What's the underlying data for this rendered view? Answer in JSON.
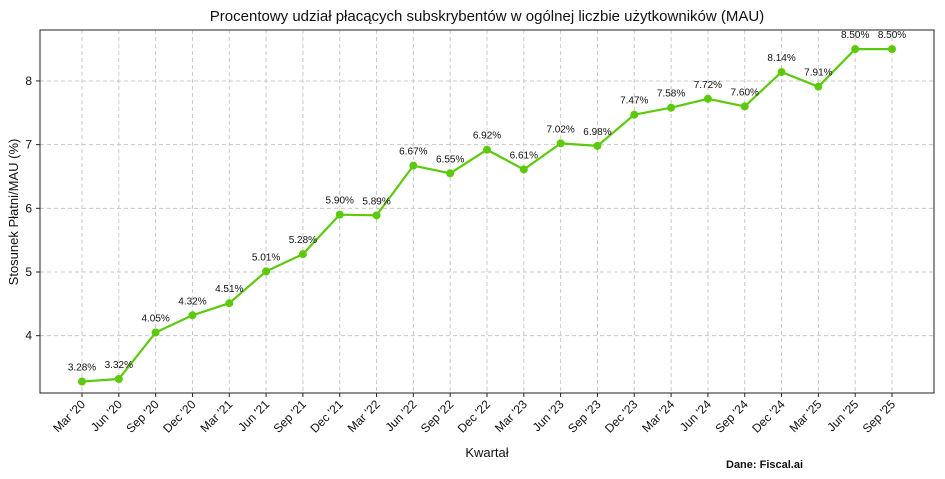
{
  "chart_data": {
    "type": "line",
    "title": "Procentowy udział płacących subskrybentów w ogólnej liczbie użytkowników (MAU)",
    "xlabel": "Kwartał",
    "ylabel": "Stosunek Płatni/MAU (%)",
    "ylim": [
      3.1,
      8.8
    ],
    "yticks": [
      4,
      5,
      6,
      7,
      8
    ],
    "grid": true,
    "line_color": "#5cc90d",
    "categories": [
      "Mar '20",
      "Jun '20",
      "Sep '20",
      "Dec '20",
      "Mar '21",
      "Jun '21",
      "Sep '21",
      "Dec '21",
      "Mar '22",
      "Jun '22",
      "Sep '22",
      "Dec '22",
      "Mar '23",
      "Jun '23",
      "Sep '23",
      "Dec '23",
      "Mar '24",
      "Jun '24",
      "Sep '24",
      "Dec '24",
      "Mar '25",
      "Jun '25",
      "Sep '25"
    ],
    "series": [
      {
        "values": [
          3.28,
          3.32,
          4.05,
          4.32,
          4.51,
          5.01,
          5.28,
          5.9,
          5.89,
          6.67,
          6.55,
          6.92,
          6.61,
          7.02,
          6.98,
          7.47,
          7.58,
          7.72,
          7.6,
          8.14,
          7.91,
          8.5,
          8.5
        ],
        "labels": [
          "3.28%",
          "3.32%",
          "4.05%",
          "4.32%",
          "4.51%",
          "5.01%",
          "5.28%",
          "5.90%",
          "5.89%",
          "6.67%",
          "6.55%",
          "6.92%",
          "6.61%",
          "7.02%",
          "6.98%",
          "7.47%",
          "7.58%",
          "7.72%",
          "7.60%",
          "8.14%",
          "7.91%",
          "8.50%",
          "8.50%"
        ]
      }
    ]
  },
  "source": "Dane: Fiscal.ai"
}
